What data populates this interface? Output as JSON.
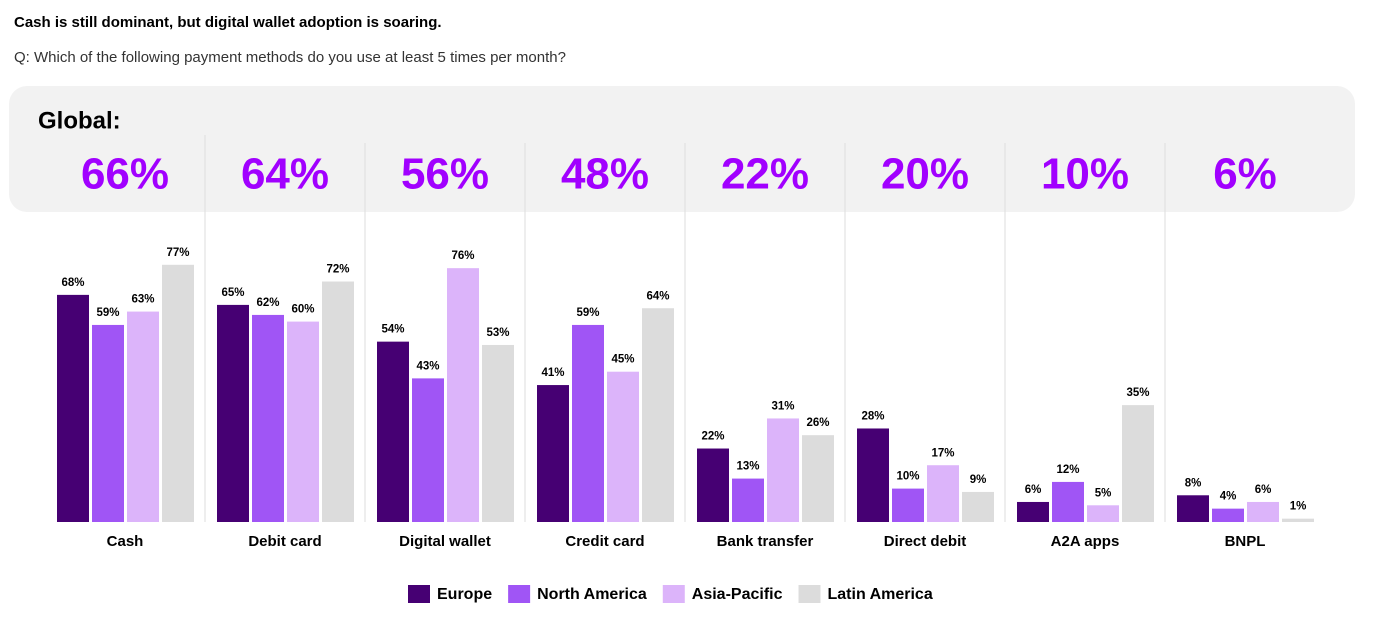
{
  "chart_data": {
    "type": "bar",
    "title": "Cash is still dominant, but digital wallet adoption is soaring.",
    "subtitle": "Q: Which of the following payment methods do you use at least 5 times per month?",
    "global": {
      "label": "Global:",
      "color": "#a100ff",
      "values": [
        66,
        64,
        56,
        48,
        22,
        20,
        10,
        6
      ],
      "value_labels": [
        "66%",
        "64%",
        "56%",
        "48%",
        "22%",
        "20%",
        "10%",
        "6%"
      ]
    },
    "categories": [
      "Cash",
      "Debit card",
      "Digital wallet",
      "Credit card",
      "Bank transfer",
      "Direct debit",
      "A2A apps",
      "BNPL"
    ],
    "series": [
      {
        "name": "Europe",
        "color": "#460073",
        "values": [
          68,
          65,
          54,
          41,
          22,
          28,
          6,
          8
        ],
        "value_labels": [
          "68%",
          "65%",
          "54%",
          "41%",
          "22%",
          "28%",
          "6%",
          "8%"
        ]
      },
      {
        "name": "North America",
        "color": "#a055f5",
        "values": [
          59,
          62,
          43,
          59,
          13,
          10,
          12,
          4
        ],
        "value_labels": [
          "59%",
          "62%",
          "43%",
          "59%",
          "13%",
          "10%",
          "12%",
          "4%"
        ]
      },
      {
        "name": "Asia-Pacific",
        "color": "#dcb4fa",
        "values": [
          63,
          60,
          76,
          45,
          31,
          17,
          5,
          6
        ],
        "value_labels": [
          "63%",
          "60%",
          "76%",
          "45%",
          "31%",
          "17%",
          "5%",
          "6%"
        ]
      },
      {
        "name": "Latin America",
        "color": "#dcdcdc",
        "values": [
          77,
          72,
          53,
          64,
          26,
          9,
          35,
          1
        ],
        "value_labels": [
          "77%",
          "72%",
          "53%",
          "64%",
          "26%",
          "9%",
          "35%",
          "1%"
        ]
      }
    ],
    "legend": "bottom"
  }
}
